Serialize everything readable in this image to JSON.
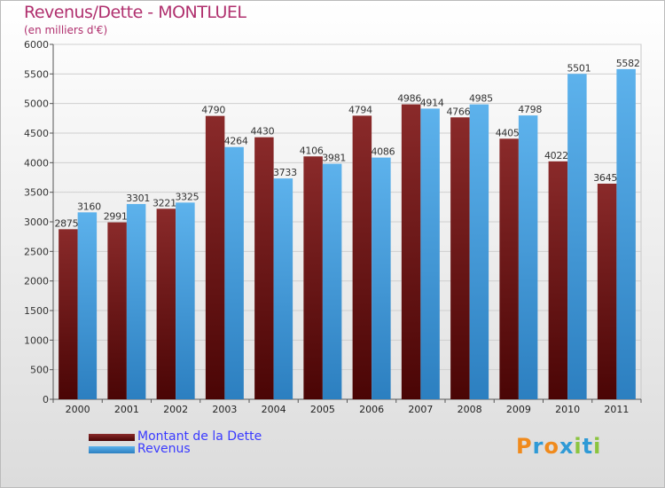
{
  "title": "Revenus/Dette - MONTLUEL",
  "subtitle": "(en milliers d'€)",
  "legend": {
    "debt_label": "Montant de la Dette",
    "revenue_label": "Revenus"
  },
  "logo": {
    "text": "Proxiti",
    "letters": [
      "P",
      "r",
      "o",
      "x",
      "i",
      "t",
      "i"
    ],
    "colors": [
      "#f08a1c",
      "#2f9ad6",
      "#f08a1c",
      "#2f9ad6",
      "#8bc43f",
      "#2f9ad6",
      "#8bc43f"
    ]
  },
  "colors": {
    "debt": "#7a1f1f",
    "debt_dark": "#4a0606",
    "revenue": "#5aaee8",
    "revenue_dark": "#2f86c8"
  },
  "chart_data": {
    "type": "bar",
    "title": "Revenus/Dette - MONTLUEL",
    "subtitle": "(en milliers d'€)",
    "categories": [
      "2000",
      "2001",
      "2002",
      "2003",
      "2004",
      "2005",
      "2006",
      "2007",
      "2008",
      "2009",
      "2010",
      "2011"
    ],
    "series": [
      {
        "name": "Montant de la Dette",
        "values": [
          2875,
          2991,
          3221,
          4790,
          4430,
          4106,
          4794,
          4986,
          4766,
          4405,
          4022,
          3645
        ],
        "labels": [
          "2875",
          "2991",
          "3221",
          "4790",
          "4430",
          "4106",
          "4794",
          "4986",
          "4766",
          "4405",
          "4022",
          "3645"
        ]
      },
      {
        "name": "Revenus",
        "values": [
          3160,
          3301,
          3325,
          4264,
          3733,
          3981,
          4086,
          4914,
          4985,
          4798,
          5501,
          5582
        ],
        "labels": [
          "3160",
          "3301",
          "3325",
          "4264",
          "3733",
          "3981",
          "4086",
          "4914",
          "4985",
          "4798",
          "5501",
          "5582"
        ]
      }
    ],
    "ylim": [
      0,
      6000
    ],
    "yticks": [
      "0",
      "500",
      "1000",
      "1500",
      "2000",
      "2500",
      "3000",
      "3500",
      "4000",
      "4500",
      "5000",
      "5500",
      "6000"
    ],
    "grid": true,
    "legend_position": "bottom-left"
  }
}
